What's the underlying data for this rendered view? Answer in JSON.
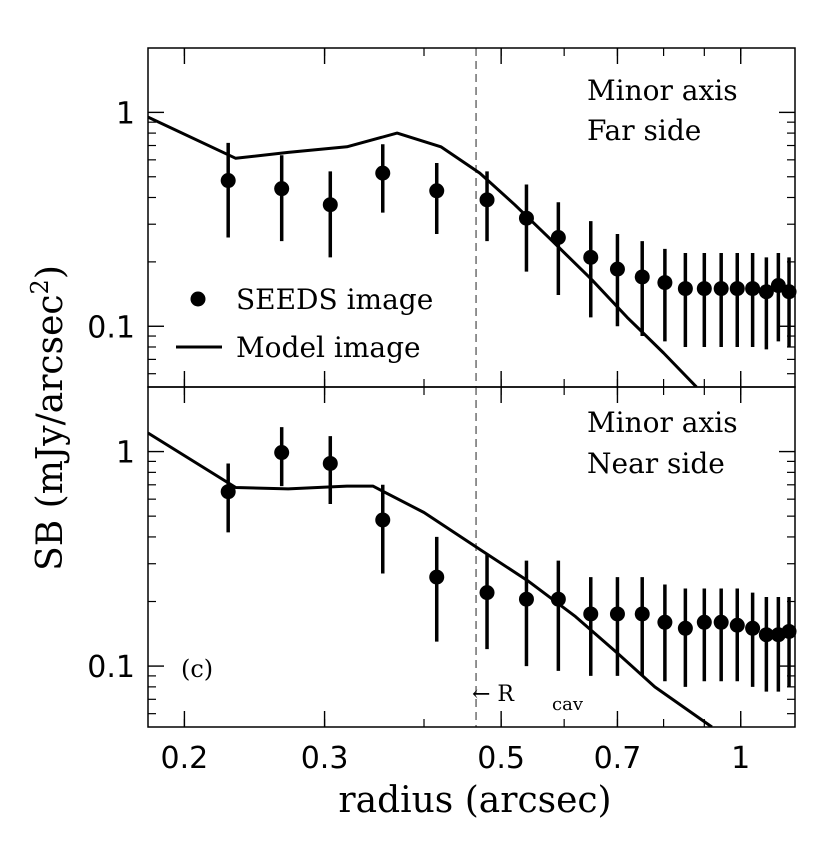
{
  "chart_data": {
    "type": "scatter",
    "xscale": "log",
    "yscale": "log",
    "xlabel": "radius (arcsec)",
    "ylabel": "SB (mJy/arcsec",
    "ylabel_sup": "2",
    "ylabel_end": ")",
    "xlim": [
      0.18,
      1.17
    ],
    "xticks": [
      {
        "value": 0.2,
        "label": "0.2"
      },
      {
        "value": 0.3,
        "label": "0.3"
      },
      {
        "value": 0.5,
        "label": "0.5"
      },
      {
        "value": 0.7,
        "label": "0.7"
      },
      {
        "value": 1.0,
        "label": "1"
      }
    ],
    "yticks": [
      {
        "value": 0.1,
        "label": "0.1"
      },
      {
        "value": 1.0,
        "label": "1"
      }
    ],
    "r_cav": {
      "value": 0.465,
      "label": "← R",
      "sub": "cav"
    },
    "legend": {
      "location": "lower-left of top panel",
      "observed": "SEEDS image",
      "model": "Model image"
    },
    "panel_label": "(c)",
    "panels": [
      {
        "name": "Minor axis Far side",
        "label_line1": "Minor axis",
        "label_line2": "Far side",
        "ylim": [
          0.052,
          2.0
        ],
        "observed": [
          {
            "x": 0.227,
            "y": 0.48,
            "lo": 0.26,
            "hi": 0.72
          },
          {
            "x": 0.265,
            "y": 0.44,
            "lo": 0.25,
            "hi": 0.63
          },
          {
            "x": 0.305,
            "y": 0.37,
            "lo": 0.21,
            "hi": 0.53
          },
          {
            "x": 0.355,
            "y": 0.52,
            "lo": 0.34,
            "hi": 0.71
          },
          {
            "x": 0.415,
            "y": 0.43,
            "lo": 0.27,
            "hi": 0.58
          },
          {
            "x": 0.48,
            "y": 0.39,
            "lo": 0.25,
            "hi": 0.53
          },
          {
            "x": 0.538,
            "y": 0.32,
            "lo": 0.18,
            "hi": 0.46
          },
          {
            "x": 0.59,
            "y": 0.26,
            "lo": 0.14,
            "hi": 0.38
          },
          {
            "x": 0.648,
            "y": 0.21,
            "lo": 0.11,
            "hi": 0.31
          },
          {
            "x": 0.7,
            "y": 0.185,
            "lo": 0.1,
            "hi": 0.27
          },
          {
            "x": 0.752,
            "y": 0.17,
            "lo": 0.09,
            "hi": 0.25
          },
          {
            "x": 0.803,
            "y": 0.16,
            "lo": 0.085,
            "hi": 0.23
          },
          {
            "x": 0.852,
            "y": 0.15,
            "lo": 0.08,
            "hi": 0.22
          },
          {
            "x": 0.9,
            "y": 0.15,
            "lo": 0.08,
            "hi": 0.22
          },
          {
            "x": 0.945,
            "y": 0.15,
            "lo": 0.08,
            "hi": 0.22
          },
          {
            "x": 0.99,
            "y": 0.15,
            "lo": 0.08,
            "hi": 0.22
          },
          {
            "x": 1.035,
            "y": 0.15,
            "lo": 0.08,
            "hi": 0.22
          },
          {
            "x": 1.077,
            "y": 0.145,
            "lo": 0.078,
            "hi": 0.21
          },
          {
            "x": 1.115,
            "y": 0.155,
            "lo": 0.085,
            "hi": 0.22
          },
          {
            "x": 1.15,
            "y": 0.145,
            "lo": 0.08,
            "hi": 0.21
          }
        ],
        "model": {
          "x": [
            0.18,
            0.232,
            0.27,
            0.32,
            0.37,
            0.42,
            0.47,
            0.52,
            0.58,
            0.65,
            0.72,
            0.8,
            0.88
          ],
          "y": [
            0.95,
            0.61,
            0.65,
            0.69,
            0.8,
            0.69,
            0.52,
            0.37,
            0.25,
            0.165,
            0.11,
            0.075,
            0.052
          ]
        }
      },
      {
        "name": "Minor axis Near side",
        "label_line1": "Minor axis",
        "label_line2": "Near side",
        "ylim": [
          0.052,
          2.0
        ],
        "observed": [
          {
            "x": 0.227,
            "y": 0.65,
            "lo": 0.42,
            "hi": 0.88
          },
          {
            "x": 0.265,
            "y": 0.99,
            "lo": 0.69,
            "hi": 1.3
          },
          {
            "x": 0.305,
            "y": 0.88,
            "lo": 0.57,
            "hi": 1.18
          },
          {
            "x": 0.355,
            "y": 0.48,
            "lo": 0.27,
            "hi": 0.7
          },
          {
            "x": 0.415,
            "y": 0.26,
            "lo": 0.13,
            "hi": 0.4
          },
          {
            "x": 0.48,
            "y": 0.22,
            "lo": 0.12,
            "hi": 0.33
          },
          {
            "x": 0.538,
            "y": 0.205,
            "lo": 0.1,
            "hi": 0.31
          },
          {
            "x": 0.59,
            "y": 0.205,
            "lo": 0.095,
            "hi": 0.31
          },
          {
            "x": 0.648,
            "y": 0.175,
            "lo": 0.09,
            "hi": 0.26
          },
          {
            "x": 0.7,
            "y": 0.175,
            "lo": 0.09,
            "hi": 0.26
          },
          {
            "x": 0.752,
            "y": 0.175,
            "lo": 0.09,
            "hi": 0.26
          },
          {
            "x": 0.803,
            "y": 0.16,
            "lo": 0.085,
            "hi": 0.24
          },
          {
            "x": 0.852,
            "y": 0.15,
            "lo": 0.08,
            "hi": 0.23
          },
          {
            "x": 0.9,
            "y": 0.16,
            "lo": 0.085,
            "hi": 0.23
          },
          {
            "x": 0.945,
            "y": 0.16,
            "lo": 0.085,
            "hi": 0.23
          },
          {
            "x": 0.99,
            "y": 0.155,
            "lo": 0.085,
            "hi": 0.23
          },
          {
            "x": 1.035,
            "y": 0.15,
            "lo": 0.08,
            "hi": 0.22
          },
          {
            "x": 1.077,
            "y": 0.14,
            "lo": 0.076,
            "hi": 0.21
          },
          {
            "x": 1.115,
            "y": 0.14,
            "lo": 0.076,
            "hi": 0.21
          },
          {
            "x": 1.15,
            "y": 0.145,
            "lo": 0.08,
            "hi": 0.21
          }
        ],
        "model": {
          "x": [
            0.18,
            0.232,
            0.27,
            0.32,
            0.345,
            0.4,
            0.47,
            0.54,
            0.62,
            0.7,
            0.78,
            0.86,
            0.92
          ],
          "y": [
            1.22,
            0.68,
            0.67,
            0.69,
            0.69,
            0.52,
            0.35,
            0.25,
            0.17,
            0.115,
            0.08,
            0.062,
            0.052
          ]
        }
      }
    ]
  }
}
